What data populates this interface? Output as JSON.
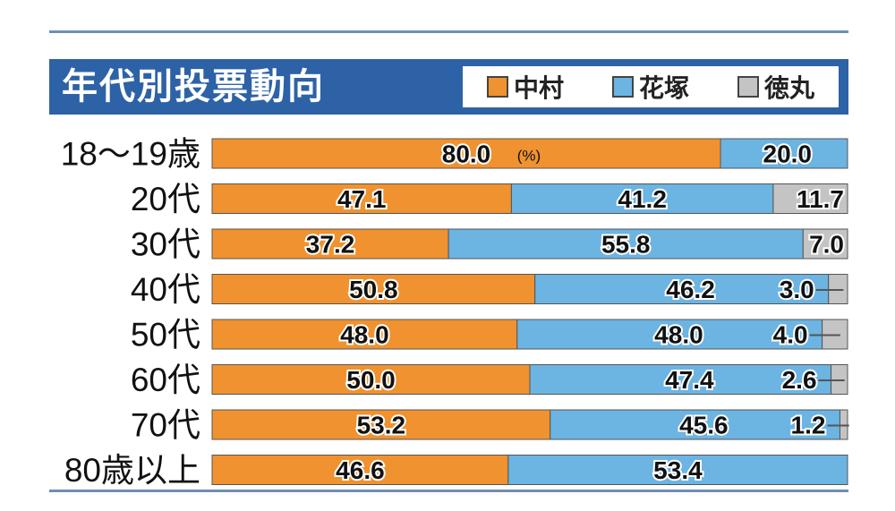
{
  "chart_data": {
    "type": "bar",
    "stacked": true,
    "orientation": "horizontal",
    "title": "年代別投票動向",
    "unit_note": "(%)",
    "categories": [
      "18～19歳",
      "20代",
      "30代",
      "40代",
      "50代",
      "60代",
      "70代",
      "80歳以上"
    ],
    "series": [
      {
        "name": "中村",
        "color": "#f0922f",
        "values": [
          80.0,
          47.1,
          37.2,
          50.8,
          48.0,
          50.0,
          53.2,
          46.6
        ]
      },
      {
        "name": "花塚",
        "color": "#6cb4e2",
        "values": [
          20.0,
          41.2,
          55.8,
          46.2,
          48.0,
          47.4,
          45.6,
          53.4
        ]
      },
      {
        "name": "徳丸",
        "color": "#c4c4c4",
        "values": [
          0,
          11.7,
          7.0,
          3.0,
          4.0,
          2.6,
          1.2,
          0
        ]
      }
    ],
    "labels": [
      [
        "80.0",
        "20.0",
        ""
      ],
      [
        "47.1",
        "41.2",
        "11.7"
      ],
      [
        "37.2",
        "55.8",
        "7.0"
      ],
      [
        "50.8",
        "46.2",
        "3.0"
      ],
      [
        "48.0",
        "48.0",
        "4.0"
      ],
      [
        "50.0",
        "47.4",
        "2.6"
      ],
      [
        "53.2",
        "45.6",
        "1.2"
      ],
      [
        "46.6",
        "53.4",
        ""
      ]
    ],
    "xlim": [
      0,
      100
    ],
    "grid": false,
    "legend_position": "top-right"
  }
}
